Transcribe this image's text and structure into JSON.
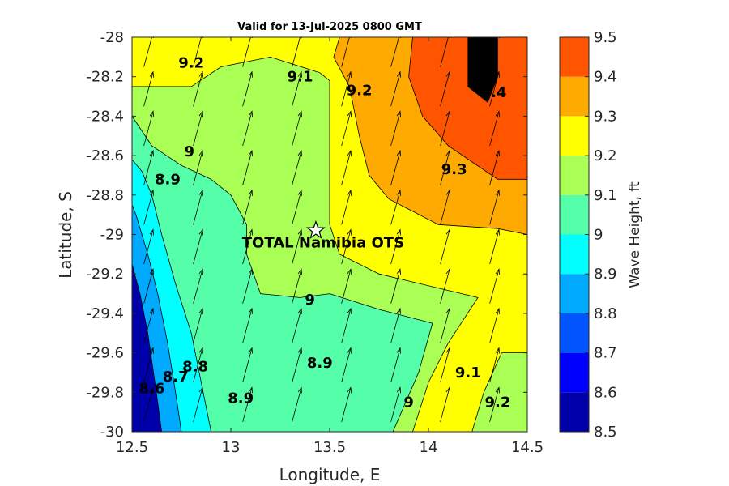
{
  "chart_data": {
    "type": "contour",
    "title": "Valid for 13-Jul-2025 0800 GMT",
    "xlabel": "Longitude, E",
    "ylabel": "Latitude, S",
    "xlim": [
      12.5,
      14.5
    ],
    "ylim": [
      -30,
      -28
    ],
    "xticks": [
      "12.5",
      "13",
      "13.5",
      "14",
      "14.5"
    ],
    "yticks": [
      "-28",
      "-28.2",
      "-28.4",
      "-28.6",
      "-28.8",
      "-29",
      "-29.2",
      "-29.4",
      "-29.6",
      "-29.8",
      "-30"
    ],
    "colorbar": {
      "label": "Wave Height, ft",
      "ticks": [
        "8.5",
        "8.6",
        "8.7",
        "8.8",
        "8.9",
        "9",
        "9.1",
        "9.2",
        "9.3",
        "9.4",
        "9.5"
      ],
      "levels": [
        {
          "range": [
            8.5,
            8.6
          ],
          "color": "#0000AA"
        },
        {
          "range": [
            8.6,
            8.7
          ],
          "color": "#0000FF"
        },
        {
          "range": [
            8.7,
            8.8
          ],
          "color": "#0055FF"
        },
        {
          "range": [
            8.8,
            8.9
          ],
          "color": "#00AAFF"
        },
        {
          "range": [
            8.9,
            9.0
          ],
          "color": "#00FFFF"
        },
        {
          "range": [
            9.0,
            9.1
          ],
          "color": "#55FFAA"
        },
        {
          "range": [
            9.1,
            9.2
          ],
          "color": "#AAFF55"
        },
        {
          "range": [
            9.2,
            9.3
          ],
          "color": "#FFFF00"
        },
        {
          "range": [
            9.3,
            9.4
          ],
          "color": "#FFAA00"
        },
        {
          "range": [
            9.4,
            9.5
          ],
          "color": "#FF5500"
        }
      ]
    },
    "site": {
      "name": "TOTAL Namibia OTS",
      "lon": 13.43,
      "lat": -28.98
    },
    "wave_direction": "toward NNE",
    "regions": [
      {
        "level": 9.5,
        "points": [
          [
            14.2,
            -28.0
          ],
          [
            14.35,
            -28.0
          ],
          [
            14.35,
            -28.2
          ],
          [
            14.3,
            -28.33
          ],
          [
            14.2,
            -28.25
          ]
        ]
      },
      {
        "level": 9.4,
        "points": [
          [
            13.92,
            -28.0
          ],
          [
            14.5,
            -28.0
          ],
          [
            14.5,
            -28.72
          ],
          [
            14.35,
            -28.72
          ],
          [
            14.1,
            -28.55
          ],
          [
            13.97,
            -28.4
          ],
          [
            13.9,
            -28.2
          ]
        ]
      },
      {
        "level": 9.3,
        "points": [
          [
            13.55,
            -28.0
          ],
          [
            14.5,
            -28.0
          ],
          [
            14.5,
            -29.0
          ],
          [
            14.35,
            -28.97
          ],
          [
            14.05,
            -28.95
          ],
          [
            13.8,
            -28.82
          ],
          [
            13.7,
            -28.7
          ],
          [
            13.65,
            -28.5
          ],
          [
            13.6,
            -28.25
          ],
          [
            13.52,
            -28.1
          ]
        ]
      },
      {
        "level": 9.2,
        "points": [
          [
            12.5,
            -28.0
          ],
          [
            14.5,
            -28.0
          ],
          [
            14.5,
            -29.6
          ],
          [
            14.37,
            -29.6
          ],
          [
            14.28,
            -29.8
          ],
          [
            14.22,
            -30.0
          ],
          [
            13.92,
            -30.0
          ],
          [
            14.0,
            -29.75
          ],
          [
            14.1,
            -29.55
          ],
          [
            14.25,
            -29.32
          ],
          [
            13.75,
            -29.2
          ],
          [
            13.55,
            -29.1
          ],
          [
            13.5,
            -28.95
          ],
          [
            13.5,
            -28.8
          ],
          [
            13.5,
            -28.5
          ],
          [
            13.5,
            -28.22
          ],
          [
            13.45,
            -28.18
          ],
          [
            13.2,
            -28.1
          ],
          [
            12.95,
            -28.15
          ],
          [
            12.8,
            -28.25
          ],
          [
            12.5,
            -28.25
          ]
        ]
      },
      {
        "level": 9.1,
        "points": [
          [
            12.5,
            -28.0
          ],
          [
            14.5,
            -28.0
          ],
          [
            14.5,
            -30.0
          ],
          [
            13.82,
            -30.0
          ],
          [
            13.95,
            -29.7
          ],
          [
            14.02,
            -29.45
          ],
          [
            13.75,
            -29.38
          ],
          [
            13.5,
            -29.3
          ],
          [
            13.35,
            -29.32
          ],
          [
            13.15,
            -29.3
          ],
          [
            13.08,
            -29.1
          ],
          [
            13.08,
            -28.95
          ],
          [
            13.0,
            -28.8
          ],
          [
            12.9,
            -28.72
          ],
          [
            12.75,
            -28.65
          ],
          [
            12.6,
            -28.55
          ],
          [
            12.5,
            -28.4
          ]
        ]
      },
      {
        "level": 9.0,
        "points": [
          [
            12.5,
            -28.0
          ],
          [
            14.5,
            -28.0
          ],
          [
            14.5,
            -30.0
          ],
          [
            12.9,
            -30.0
          ],
          [
            12.85,
            -29.75
          ],
          [
            12.8,
            -29.5
          ],
          [
            12.72,
            -29.25
          ],
          [
            12.65,
            -29.0
          ],
          [
            12.6,
            -28.8
          ],
          [
            12.55,
            -28.68
          ],
          [
            12.5,
            -28.62
          ]
        ]
      },
      {
        "level": 8.9,
        "points": [
          [
            12.5,
            -28.0
          ],
          [
            14.5,
            -28.0
          ],
          [
            14.5,
            -30.0
          ],
          [
            12.75,
            -30.0
          ],
          [
            12.72,
            -29.8
          ],
          [
            12.68,
            -29.55
          ],
          [
            12.63,
            -29.3
          ],
          [
            12.58,
            -29.1
          ],
          [
            12.52,
            -28.9
          ],
          [
            12.5,
            -28.85
          ]
        ]
      },
      {
        "level": 8.8,
        "points": [
          [
            12.5,
            -28.0
          ],
          [
            14.5,
            -28.0
          ],
          [
            14.5,
            -30.0
          ],
          [
            12.65,
            -30.0
          ],
          [
            12.62,
            -29.78
          ],
          [
            12.58,
            -29.5
          ],
          [
            12.54,
            -29.3
          ],
          [
            12.5,
            -29.15
          ]
        ]
      },
      {
        "level": 8.9,
        "points": [
          [
            13.35,
            -29.75
          ],
          [
            13.55,
            -29.62
          ],
          [
            13.65,
            -29.75
          ],
          [
            13.45,
            -29.82
          ]
        ]
      }
    ],
    "contour_labels": [
      {
        "text": "9.2",
        "lon": 12.8,
        "lat": -28.13
      },
      {
        "text": "9.1",
        "lon": 13.35,
        "lat": -28.2
      },
      {
        "text": "9.2",
        "lon": 13.65,
        "lat": -28.27
      },
      {
        "text": "9.4",
        "lon": 14.33,
        "lat": -28.28
      },
      {
        "text": "9",
        "lon": 12.79,
        "lat": -28.58
      },
      {
        "text": "8.9",
        "lon": 12.68,
        "lat": -28.72
      },
      {
        "text": "9.3",
        "lon": 14.13,
        "lat": -28.67
      },
      {
        "text": "9",
        "lon": 13.4,
        "lat": -29.33
      },
      {
        "text": "8.9",
        "lon": 13.45,
        "lat": -29.65
      },
      {
        "text": "8.8",
        "lon": 12.82,
        "lat": -29.67
      },
      {
        "text": "8.7",
        "lon": 12.72,
        "lat": -29.72
      },
      {
        "text": "8.6",
        "lon": 12.6,
        "lat": -29.78
      },
      {
        "text": "8.9",
        "lon": 13.05,
        "lat": -29.83
      },
      {
        "text": "9",
        "lon": 13.9,
        "lat": -29.85
      },
      {
        "text": "9.1",
        "lon": 14.2,
        "lat": -29.7
      },
      {
        "text": "9.2",
        "lon": 14.35,
        "lat": -29.85
      }
    ]
  }
}
